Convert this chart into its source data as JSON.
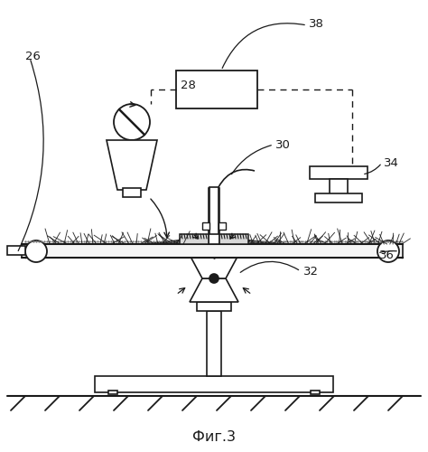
{
  "bg": "#ffffff",
  "lc": "#1a1a1a",
  "figcaption": "Фиг.3",
  "lw": 1.2
}
